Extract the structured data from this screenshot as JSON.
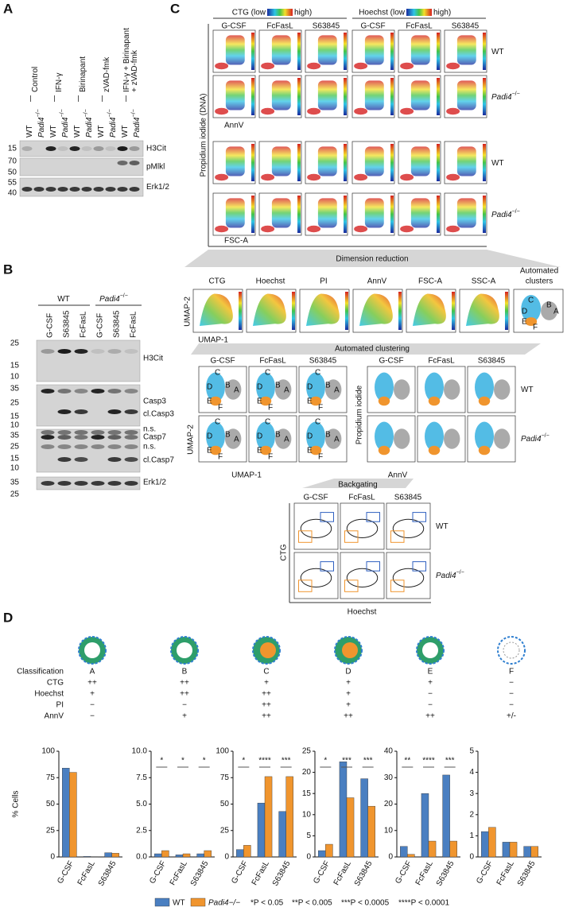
{
  "A": {
    "label": "A",
    "groups": [
      [
        "Control"
      ],
      [
        "IFN-γ"
      ],
      [
        "Birinapant"
      ],
      [
        "zVAD-fmk"
      ],
      [
        "IFN-γ + Birinapant",
        "+ zVAD-fmk"
      ]
    ],
    "lanes": [
      {
        "t": "WT"
      },
      {
        "t": "Padi4",
        "sup": "−/−"
      },
      {
        "t": "WT"
      },
      {
        "t": "Padi4",
        "sup": "−/−"
      },
      {
        "t": "WT"
      },
      {
        "t": "Padi4",
        "sup": "−/−"
      },
      {
        "t": "WT"
      },
      {
        "t": "Padi4",
        "sup": "−/−"
      },
      {
        "t": "WT"
      },
      {
        "t": "Padi4",
        "sup": "−/−"
      }
    ],
    "blots": [
      {
        "name": "H3Cit",
        "kda": [
          "15"
        ]
      },
      {
        "name": "pMlkl",
        "kda": [
          "70",
          "50"
        ]
      },
      {
        "name": "Erk1/2",
        "kda": [
          "55",
          "40"
        ]
      }
    ]
  },
  "B": {
    "label": "B",
    "groups": [
      {
        "t": "WT"
      },
      {
        "t": "Padi4",
        "sup": "−/−"
      }
    ],
    "lanes": [
      "G-CSF",
      "S63845",
      "FcFasL",
      "G-CSF",
      "S63845",
      "FcFasL"
    ],
    "blots": [
      {
        "names": [
          "H3Cit"
        ],
        "kda": [
          "25",
          "15",
          "10"
        ]
      },
      {
        "names": [
          "Casp3",
          "cl.Casp3"
        ],
        "kda": [
          "35",
          "25",
          "15",
          "10"
        ]
      },
      {
        "names": [
          "n.s.",
          "Casp7",
          "n.s.",
          "cl.Casp7"
        ],
        "kda": [
          "35",
          "25",
          "15",
          "10"
        ]
      },
      {
        "names": [
          "Erk1/2"
        ],
        "kda": [
          "35",
          "25"
        ]
      }
    ]
  },
  "C": {
    "label": "C",
    "headers": [
      {
        "pre": "CTG (low",
        "post": "high)"
      },
      {
        "pre": "Hoechst (low",
        "post": "high)"
      }
    ],
    "treatments": [
      "G-CSF",
      "FcFasL",
      "S63845"
    ],
    "genotypes": [
      {
        "t": "WT"
      },
      {
        "t": "Padi4",
        "sup": "−/−"
      }
    ],
    "scatter_ylabel": "Propidium iodide (DNA)",
    "scatter_xlabels": [
      "AnnV",
      "FSC-A"
    ],
    "dimension_reduction": "Dimension reduction",
    "umap_channels": [
      "CTG",
      "Hoechst",
      "PI",
      "AnnV",
      "FSC-A",
      "SSC-A"
    ],
    "automated_clusters": [
      "Automated",
      "clusters"
    ],
    "umap_x": "UMAP-1",
    "umap_y": "UMAP-2",
    "clusters": [
      "A",
      "B",
      "C",
      "D",
      "E",
      "F"
    ],
    "automated_clustering": "Automated clustering",
    "pi_label": "Propidium iodide",
    "annv_label": "AnnV",
    "backgating": "Backgating",
    "ctg_label": "CTG",
    "hoechst_label": "Hoechst"
  },
  "D": {
    "label": "D",
    "table": [
      [
        "Classification",
        "A",
        "B",
        "C",
        "D",
        "E",
        "F"
      ],
      [
        "CTG",
        "++",
        "++",
        "+",
        "+",
        "+",
        "−"
      ],
      [
        "Hoechst",
        "+",
        "++",
        "++",
        "+",
        "−",
        "−"
      ],
      [
        "PI",
        "−",
        "−",
        "++",
        "+",
        "−",
        "−"
      ],
      [
        "AnnV",
        "−",
        "+",
        "++",
        "++",
        "++",
        "+/-"
      ]
    ],
    "ylabel": "% Cells",
    "notes": [
      "*P < 0.05",
      "**P < 0.005",
      "***P < 0.0005",
      "****P < 0.0001"
    ]
  },
  "chart_data": [
    {
      "type": "bar",
      "categories": [
        "G-CSF",
        "FcFasL",
        "S63845"
      ],
      "ylim": [
        0,
        100
      ],
      "yticks": [
        0,
        25,
        50,
        75,
        100
      ],
      "series": [
        {
          "name": "WT",
          "color": "#4a7fc1",
          "values": [
            84,
            0.5,
            4
          ]
        },
        {
          "name": "Padi4−/−",
          "color": "#f0952e",
          "values": [
            80,
            0.3,
            3.5
          ]
        }
      ]
    },
    {
      "type": "bar",
      "categories": [
        "G-CSF",
        "FcFasL",
        "S63845"
      ],
      "ylim": [
        0,
        10
      ],
      "yticks": [
        {
          "value": 0,
          "label": "0.0"
        },
        {
          "value": 2.5,
          "label": "2.5"
        },
        {
          "value": 5,
          "label": "5.0"
        },
        {
          "value": 7.5,
          "label": "7.5"
        },
        {
          "value": 10,
          "label": "10.0"
        }
      ],
      "series": [
        {
          "name": "WT",
          "color": "#4a7fc1",
          "values": [
            0.3,
            0.2,
            0.3
          ]
        },
        {
          "name": "Padi4−/−",
          "color": "#f0952e",
          "values": [
            0.6,
            0.3,
            0.6
          ]
        }
      ],
      "significance": [
        "*",
        "*",
        "*"
      ]
    },
    {
      "type": "bar",
      "categories": [
        "G-CSF",
        "FcFasL",
        "S63845"
      ],
      "ylim": [
        0,
        100
      ],
      "yticks": [
        0,
        25,
        50,
        75,
        100
      ],
      "series": [
        {
          "name": "WT",
          "color": "#4a7fc1",
          "values": [
            7,
            51,
            43
          ]
        },
        {
          "name": "Padi4−/−",
          "color": "#f0952e",
          "values": [
            11,
            76,
            76
          ]
        }
      ],
      "significance": [
        "*",
        "****",
        "***"
      ]
    },
    {
      "type": "bar",
      "categories": [
        "G-CSF",
        "FcFasL",
        "S63845"
      ],
      "ylim": [
        0,
        25
      ],
      "yticks": [
        0,
        5,
        10,
        15,
        20,
        25
      ],
      "series": [
        {
          "name": "WT",
          "color": "#4a7fc1",
          "values": [
            1.5,
            22.5,
            18.5
          ]
        },
        {
          "name": "Padi4−/−",
          "color": "#f0952e",
          "values": [
            3,
            14,
            12
          ]
        }
      ],
      "significance": [
        "*",
        "***",
        "***"
      ]
    },
    {
      "type": "bar",
      "categories": [
        "G-CSF",
        "FcFasL",
        "S63845"
      ],
      "ylim": [
        0,
        40
      ],
      "yticks": [
        0,
        10,
        20,
        30,
        40
      ],
      "series": [
        {
          "name": "WT",
          "color": "#4a7fc1",
          "values": [
            4,
            24,
            31
          ]
        },
        {
          "name": "Padi4−/−",
          "color": "#f0952e",
          "values": [
            1,
            6,
            6
          ]
        }
      ],
      "significance": [
        "**",
        "****",
        "***"
      ]
    },
    {
      "type": "bar",
      "categories": [
        "G-CSF",
        "FcFasL",
        "S63845"
      ],
      "ylim": [
        0,
        5
      ],
      "yticks": [
        0,
        1,
        2,
        3,
        4,
        5
      ],
      "series": [
        {
          "name": "WT",
          "color": "#4a7fc1",
          "values": [
            1.2,
            0.7,
            0.5
          ]
        },
        {
          "name": "Padi4−/−",
          "color": "#f0952e",
          "values": [
            1.4,
            0.7,
            0.5
          ]
        }
      ]
    }
  ]
}
